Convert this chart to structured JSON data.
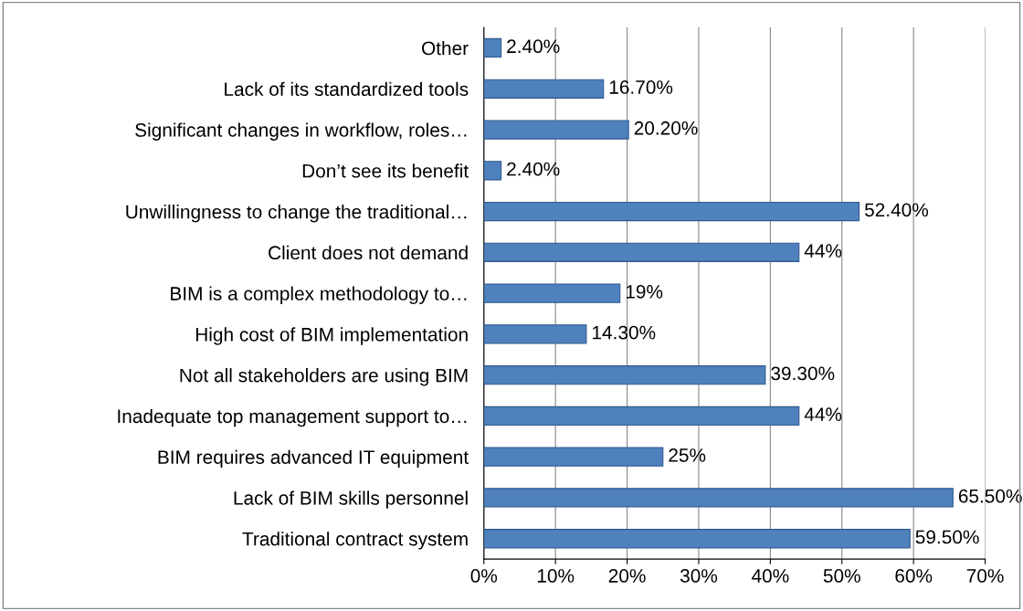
{
  "chart_data": {
    "type": "bar",
    "orientation": "horizontal",
    "categories": [
      "Other",
      "Lack of its standardized tools",
      "Significant changes in workflow, roles…",
      "Don’t see its benefit",
      "Unwillingness to change the traditional…",
      "Client does not demand",
      "BIM is a complex methodology to…",
      "High cost of BIM implementation",
      "Not all stakeholders are using BIM",
      "Inadequate top management support to…",
      "BIM requires advanced IT equipment",
      "Lack of BIM skills personnel",
      "Traditional contract system"
    ],
    "values": [
      2.4,
      16.7,
      20.2,
      2.4,
      52.4,
      44,
      19,
      14.3,
      39.3,
      44,
      25,
      65.5,
      59.5
    ],
    "value_labels": [
      "2.40%",
      "16.70%",
      "20.20%",
      "2.40%",
      "52.40%",
      "44%",
      "19%",
      "14.30%",
      "39.30%",
      "44%",
      "25%",
      "65.50%",
      "59.50%"
    ],
    "color": "#4f81bd",
    "xlim": [
      0,
      70
    ],
    "xticks": [
      {
        "value": 0,
        "label": "0%"
      },
      {
        "value": 10,
        "label": "10%"
      },
      {
        "value": 20,
        "label": "20%"
      },
      {
        "value": 30,
        "label": "30%"
      },
      {
        "value": 40,
        "label": "40%"
      },
      {
        "value": 50,
        "label": "50%"
      },
      {
        "value": 60,
        "label": "60%"
      },
      {
        "value": 70,
        "label": "70%"
      }
    ],
    "grid": "x",
    "legend": false
  }
}
